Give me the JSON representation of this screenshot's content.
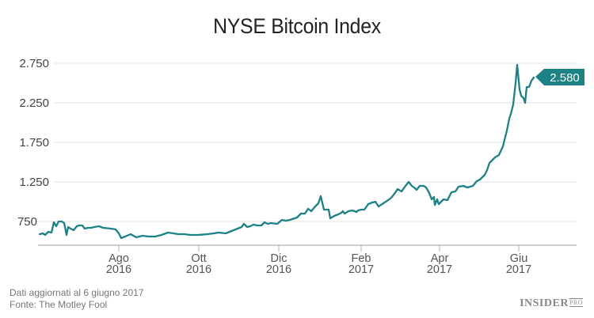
{
  "title": "NYSE Bitcoin Index",
  "footer": {
    "line1": "Dati aggiornati al 6 giugno 2017",
    "line2": "Fonte: The Motley Fool",
    "brand": "INSIDER",
    "brand_suffix": "PRO"
  },
  "colors": {
    "line": "#1b8285",
    "label_bg": "#1b8285",
    "grid": "#e6e6e6",
    "axis": "#aaaaaa"
  },
  "callout": {
    "label": "2.580"
  },
  "chart_data": {
    "type": "line",
    "title": "NYSE Bitcoin Index",
    "xlabel": "",
    "ylabel": "",
    "ylim": [
      450,
      2850
    ],
    "yticks": [
      "2.750",
      "2.250",
      "1.750",
      "1.250",
      "750"
    ],
    "ytick_values": [
      2750,
      2250,
      1750,
      1250,
      750
    ],
    "xticks": [
      {
        "month": "Ago",
        "year": "2016"
      },
      {
        "month": "Ott",
        "year": "2016"
      },
      {
        "month": "Dic",
        "year": "2016"
      },
      {
        "month": "Feb",
        "year": "2017"
      },
      {
        "month": "Apr",
        "year": "2017"
      },
      {
        "month": "Giu",
        "year": "2017"
      }
    ],
    "grid": true,
    "legend": "none",
    "last_value_label": "2.580",
    "series": [
      {
        "name": "NYSE Bitcoin Index",
        "points": [
          [
            50,
            590
          ],
          [
            54,
            600
          ],
          [
            57,
            580
          ],
          [
            61,
            620
          ],
          [
            65,
            610
          ],
          [
            68,
            740
          ],
          [
            71,
            690
          ],
          [
            74,
            750
          ],
          [
            78,
            750
          ],
          [
            81,
            730
          ],
          [
            84,
            580
          ],
          [
            86,
            680
          ],
          [
            89,
            660
          ],
          [
            93,
            640
          ],
          [
            97,
            690
          ],
          [
            100,
            700
          ],
          [
            104,
            700
          ],
          [
            107,
            660
          ],
          [
            111,
            670
          ],
          [
            115,
            670
          ],
          [
            119,
            680
          ],
          [
            125,
            690
          ],
          [
            130,
            670
          ],
          [
            140,
            660
          ],
          [
            146,
            650
          ],
          [
            150,
            600
          ],
          [
            153,
            540
          ],
          [
            158,
            560
          ],
          [
            165,
            590
          ],
          [
            172,
            550
          ],
          [
            180,
            570
          ],
          [
            188,
            560
          ],
          [
            196,
            560
          ],
          [
            204,
            580
          ],
          [
            212,
            610
          ],
          [
            219,
            600
          ],
          [
            225,
            590
          ],
          [
            233,
            590
          ],
          [
            240,
            580
          ],
          [
            250,
            580
          ],
          [
            262,
            590
          ],
          [
            270,
            600
          ],
          [
            276,
            610
          ],
          [
            285,
            600
          ],
          [
            295,
            640
          ],
          [
            305,
            680
          ],
          [
            308,
            720
          ],
          [
            312,
            680
          ],
          [
            316,
            690
          ],
          [
            320,
            710
          ],
          [
            325,
            700
          ],
          [
            330,
            700
          ],
          [
            334,
            740
          ],
          [
            338,
            720
          ],
          [
            342,
            730
          ],
          [
            350,
            720
          ],
          [
            356,
            770
          ],
          [
            361,
            760
          ],
          [
            366,
            770
          ],
          [
            375,
            800
          ],
          [
            380,
            850
          ],
          [
            385,
            850
          ],
          [
            389,
            910
          ],
          [
            393,
            880
          ],
          [
            398,
            940
          ],
          [
            402,
            980
          ],
          [
            405,
            1070
          ],
          [
            409,
            900
          ],
          [
            415,
            900
          ],
          [
            417,
            790
          ],
          [
            422,
            820
          ],
          [
            427,
            840
          ],
          [
            431,
            860
          ],
          [
            433,
            880
          ],
          [
            435,
            850
          ],
          [
            440,
            880
          ],
          [
            445,
            890
          ],
          [
            450,
            870
          ],
          [
            452,
            890
          ],
          [
            456,
            900
          ],
          [
            460,
            900
          ],
          [
            465,
            970
          ],
          [
            470,
            990
          ],
          [
            474,
            1000
          ],
          [
            478,
            940
          ],
          [
            484,
            980
          ],
          [
            490,
            1020
          ],
          [
            494,
            1050
          ],
          [
            498,
            1100
          ],
          [
            502,
            1160
          ],
          [
            507,
            1130
          ],
          [
            512,
            1200
          ],
          [
            516,
            1250
          ],
          [
            520,
            1200
          ],
          [
            524,
            1170
          ],
          [
            526,
            1150
          ],
          [
            530,
            1200
          ],
          [
            535,
            1200
          ],
          [
            538,
            1180
          ],
          [
            542,
            1110
          ],
          [
            545,
            1030
          ],
          [
            548,
            1060
          ],
          [
            549,
            960
          ],
          [
            552,
            1030
          ],
          [
            554,
            970
          ],
          [
            557,
            1000
          ],
          [
            560,
            1030
          ],
          [
            565,
            1020
          ],
          [
            570,
            1120
          ],
          [
            575,
            1130
          ],
          [
            579,
            1190
          ],
          [
            585,
            1200
          ],
          [
            590,
            1180
          ],
          [
            597,
            1200
          ],
          [
            602,
            1260
          ],
          [
            606,
            1280
          ],
          [
            612,
            1340
          ],
          [
            615,
            1400
          ],
          [
            618,
            1490
          ],
          [
            620,
            1510
          ],
          [
            625,
            1560
          ],
          [
            630,
            1590
          ],
          [
            635,
            1700
          ],
          [
            640,
            1900
          ],
          [
            643,
            2050
          ],
          [
            645,
            2110
          ],
          [
            648,
            2230
          ],
          [
            651,
            2500
          ],
          [
            653,
            2730
          ],
          [
            656,
            2420
          ],
          [
            658,
            2340
          ],
          [
            661,
            2310
          ],
          [
            663,
            2250
          ],
          [
            665,
            2450
          ],
          [
            668,
            2450
          ],
          [
            671,
            2530
          ],
          [
            674,
            2570
          ]
        ]
      }
    ]
  }
}
